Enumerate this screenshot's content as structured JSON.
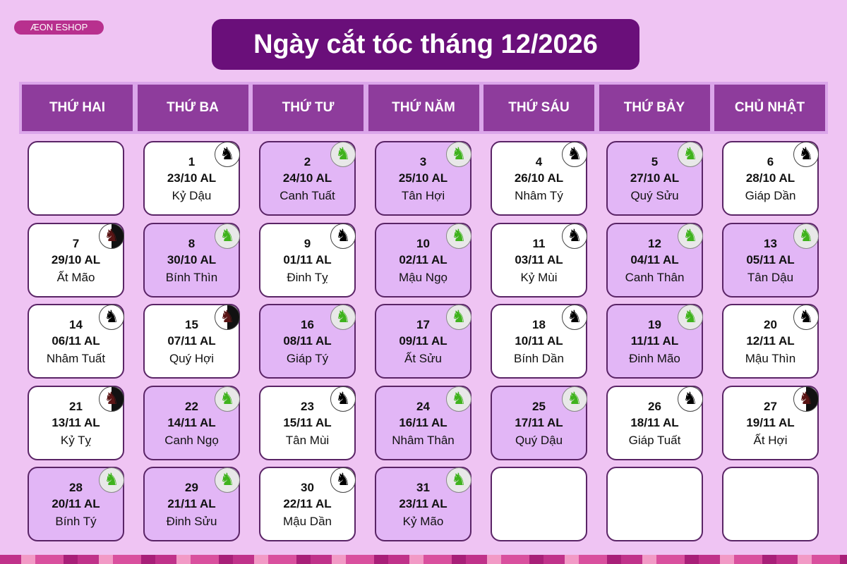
{
  "logo": "ÆON ESHOP",
  "title": "Ngày cắt tóc tháng 12/2026",
  "weekdays": [
    "THỨ HAI",
    "THỨ BA",
    "THỨ TƯ",
    "THỨ NĂM",
    "THỨ SÁU",
    "THỨ BẢY",
    "CHỦ NHẬT"
  ],
  "colors": {
    "good_bg": "#e2b6f6",
    "normal_bg": "#ffffff",
    "header_bg": "#8e3c9c",
    "title_bg": "#6a0f7a"
  },
  "first_weekday_offset": 1,
  "days": [
    {
      "day": "1",
      "lunar": "23/10 AL",
      "canchi": "Kỷ Dậu",
      "type": "black"
    },
    {
      "day": "2",
      "lunar": "24/10 AL",
      "canchi": "Canh Tuất",
      "type": "good"
    },
    {
      "day": "3",
      "lunar": "25/10 AL",
      "canchi": "Tân Hợi",
      "type": "good"
    },
    {
      "day": "4",
      "lunar": "26/10 AL",
      "canchi": "Nhâm Tý",
      "type": "black"
    },
    {
      "day": "5",
      "lunar": "27/10 AL",
      "canchi": "Quý Sửu",
      "type": "good"
    },
    {
      "day": "6",
      "lunar": "28/10 AL",
      "canchi": "Giáp Dần",
      "type": "black"
    },
    {
      "day": "7",
      "lunar": "29/10 AL",
      "canchi": "Ất Mão",
      "type": "red"
    },
    {
      "day": "8",
      "lunar": "30/10 AL",
      "canchi": "Bính Thìn",
      "type": "good"
    },
    {
      "day": "9",
      "lunar": "01/11 AL",
      "canchi": "Đinh Tỵ",
      "type": "black"
    },
    {
      "day": "10",
      "lunar": "02/11 AL",
      "canchi": "Mậu Ngọ",
      "type": "good"
    },
    {
      "day": "11",
      "lunar": "03/11 AL",
      "canchi": "Kỷ Mùi",
      "type": "black"
    },
    {
      "day": "12",
      "lunar": "04/11 AL",
      "canchi": "Canh Thân",
      "type": "good"
    },
    {
      "day": "13",
      "lunar": "05/11 AL",
      "canchi": "Tân Dậu",
      "type": "good"
    },
    {
      "day": "14",
      "lunar": "06/11 AL",
      "canchi": "Nhâm Tuất",
      "type": "black"
    },
    {
      "day": "15",
      "lunar": "07/11 AL",
      "canchi": "Quý Hợi",
      "type": "red"
    },
    {
      "day": "16",
      "lunar": "08/11 AL",
      "canchi": "Giáp Tý",
      "type": "good"
    },
    {
      "day": "17",
      "lunar": "09/11 AL",
      "canchi": "Ất Sửu",
      "type": "good"
    },
    {
      "day": "18",
      "lunar": "10/11 AL",
      "canchi": "Bính Dần",
      "type": "black"
    },
    {
      "day": "19",
      "lunar": "11/11 AL",
      "canchi": "Đinh Mão",
      "type": "good"
    },
    {
      "day": "20",
      "lunar": "12/11 AL",
      "canchi": "Mậu Thìn",
      "type": "black"
    },
    {
      "day": "21",
      "lunar": "13/11 AL",
      "canchi": "Kỷ Tỵ",
      "type": "red"
    },
    {
      "day": "22",
      "lunar": "14/11 AL",
      "canchi": "Canh Ngọ",
      "type": "good"
    },
    {
      "day": "23",
      "lunar": "15/11 AL",
      "canchi": "Tân Mùi",
      "type": "black"
    },
    {
      "day": "24",
      "lunar": "16/11 AL",
      "canchi": "Nhâm Thân",
      "type": "good"
    },
    {
      "day": "25",
      "lunar": "17/11 AL",
      "canchi": "Quý Dậu",
      "type": "good"
    },
    {
      "day": "26",
      "lunar": "18/11 AL",
      "canchi": "Giáp Tuất",
      "type": "black"
    },
    {
      "day": "27",
      "lunar": "19/11 AL",
      "canchi": "Ất Hợi",
      "type": "red"
    },
    {
      "day": "28",
      "lunar": "20/11 AL",
      "canchi": "Bính Tý",
      "type": "good"
    },
    {
      "day": "29",
      "lunar": "21/11 AL",
      "canchi": "Đinh Sửu",
      "type": "good"
    },
    {
      "day": "30",
      "lunar": "22/11 AL",
      "canchi": "Mậu Dần",
      "type": "black"
    },
    {
      "day": "31",
      "lunar": "23/11 AL",
      "canchi": "Kỷ Mão",
      "type": "good"
    }
  ]
}
